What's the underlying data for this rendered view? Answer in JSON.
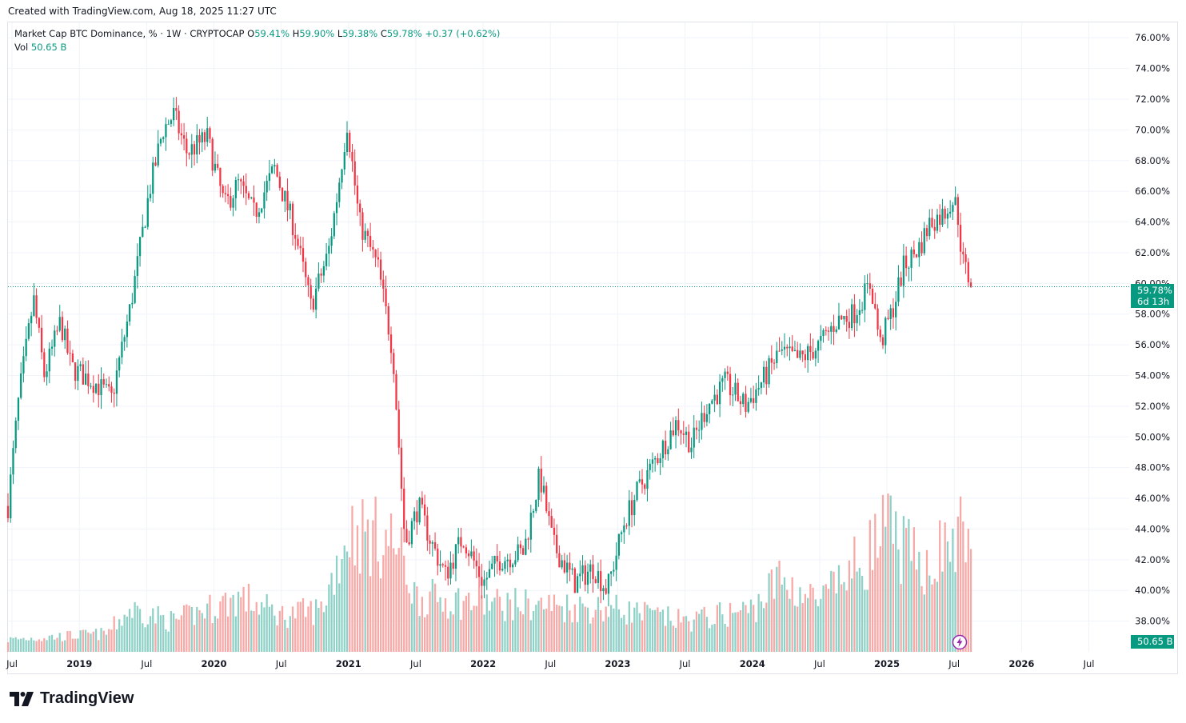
{
  "caption": "Created with TradingView.com, Aug 18, 2025 11:27 UTC",
  "legend": {
    "title": "Market Cap BTC Dominance, % · 1W · CRYPTOCAP",
    "o_key": "O",
    "o_val": "59.41%",
    "h_key": "H",
    "h_val": "59.90%",
    "l_key": "L",
    "l_val": "59.38%",
    "c_key": "C",
    "c_val": "59.78%",
    "change": "+0.37 (+0.62%)",
    "vol_key": "Vol",
    "vol_val": "50.65 B"
  },
  "price_label": {
    "value": "59.78%",
    "countdown": "6d 13h"
  },
  "vol_label": "50.65 B",
  "brand": "TradingView",
  "colors": {
    "up": "#089981",
    "down": "#f23645",
    "up_vol": "#8ed1c7",
    "down_vol": "#f7a9a7",
    "grid": "#f0f3fa"
  },
  "chart_data": {
    "type": "candlestick",
    "title": "Market Cap BTC Dominance, % · 1W · CRYPTOCAP",
    "y_unit": "%",
    "ylim": [
      36.0,
      77.0
    ],
    "y_ticks": [
      38,
      40,
      42,
      44,
      46,
      48,
      50,
      52,
      54,
      56,
      58,
      60,
      62,
      64,
      66,
      68,
      70,
      72,
      74,
      76
    ],
    "y_tick_labels": [
      "38.00%",
      "40.00%",
      "42.00%",
      "44.00%",
      "46.00%",
      "48.00%",
      "50.00%",
      "52.00%",
      "54.00%",
      "56.00%",
      "58.00%",
      "60.00%",
      "62.00%",
      "64.00%",
      "66.00%",
      "68.00%",
      "70.00%",
      "72.00%",
      "74.00%",
      "76.00%"
    ],
    "x_ticks": [
      "Jul",
      "2019",
      "Jul",
      "2020",
      "Jul",
      "2021",
      "Jul",
      "2022",
      "Jul",
      "2023",
      "Jul",
      "2024",
      "Jul",
      "2025",
      "Jul",
      "2026",
      "Jul"
    ],
    "x_tick_dates": [
      2018.5,
      2019.0,
      2019.5,
      2020.0,
      2020.5,
      2021.0,
      2021.5,
      2022.0,
      2022.5,
      2023.0,
      2023.5,
      2024.0,
      2024.5,
      2025.0,
      2025.5,
      2026.0,
      2026.5
    ],
    "x_range": [
      2018.47,
      2026.8
    ],
    "last_price": 59.78,
    "anchors": [
      {
        "t": 2018.47,
        "v": 45.5
      },
      {
        "t": 2018.55,
        "v": 52.5
      },
      {
        "t": 2018.66,
        "v": 59.0
      },
      {
        "t": 2018.74,
        "v": 54.0
      },
      {
        "t": 2018.86,
        "v": 57.5
      },
      {
        "t": 2018.94,
        "v": 54.5
      },
      {
        "t": 2019.12,
        "v": 53.5
      },
      {
        "t": 2019.24,
        "v": 52.5
      },
      {
        "t": 2019.38,
        "v": 58.5
      },
      {
        "t": 2019.52,
        "v": 66.0
      },
      {
        "t": 2019.62,
        "v": 70.0
      },
      {
        "t": 2019.7,
        "v": 71.0
      },
      {
        "t": 2019.8,
        "v": 68.5
      },
      {
        "t": 2019.95,
        "v": 69.5
      },
      {
        "t": 2020.08,
        "v": 65.0
      },
      {
        "t": 2020.18,
        "v": 66.5
      },
      {
        "t": 2020.3,
        "v": 64.5
      },
      {
        "t": 2020.45,
        "v": 67.5
      },
      {
        "t": 2020.6,
        "v": 63.5
      },
      {
        "t": 2020.72,
        "v": 58.5
      },
      {
        "t": 2020.85,
        "v": 62.0
      },
      {
        "t": 2020.92,
        "v": 66.0
      },
      {
        "t": 2020.99,
        "v": 70.5
      },
      {
        "t": 2021.08,
        "v": 64.0
      },
      {
        "t": 2021.22,
        "v": 61.0
      },
      {
        "t": 2021.33,
        "v": 55.5
      },
      {
        "t": 2021.42,
        "v": 43.0
      },
      {
        "t": 2021.52,
        "v": 45.5
      },
      {
        "t": 2021.62,
        "v": 43.0
      },
      {
        "t": 2021.72,
        "v": 41.0
      },
      {
        "t": 2021.85,
        "v": 43.5
      },
      {
        "t": 2022.0,
        "v": 40.5
      },
      {
        "t": 2022.12,
        "v": 42.0
      },
      {
        "t": 2022.3,
        "v": 42.5
      },
      {
        "t": 2022.42,
        "v": 47.5
      },
      {
        "t": 2022.52,
        "v": 43.0
      },
      {
        "t": 2022.68,
        "v": 40.5
      },
      {
        "t": 2022.82,
        "v": 41.5
      },
      {
        "t": 2022.92,
        "v": 40.0
      },
      {
        "t": 2023.05,
        "v": 44.5
      },
      {
        "t": 2023.15,
        "v": 46.5
      },
      {
        "t": 2023.28,
        "v": 48.5
      },
      {
        "t": 2023.44,
        "v": 51.0
      },
      {
        "t": 2023.55,
        "v": 49.5
      },
      {
        "t": 2023.66,
        "v": 52.0
      },
      {
        "t": 2023.8,
        "v": 53.5
      },
      {
        "t": 2023.95,
        "v": 52.0
      },
      {
        "t": 2024.1,
        "v": 54.0
      },
      {
        "t": 2024.2,
        "v": 55.5
      },
      {
        "t": 2024.35,
        "v": 55.0
      },
      {
        "t": 2024.5,
        "v": 56.0
      },
      {
        "t": 2024.62,
        "v": 57.5
      },
      {
        "t": 2024.75,
        "v": 58.0
      },
      {
        "t": 2024.88,
        "v": 60.0
      },
      {
        "t": 2024.95,
        "v": 56.0
      },
      {
        "t": 2025.05,
        "v": 58.5
      },
      {
        "t": 2025.12,
        "v": 61.0
      },
      {
        "t": 2025.25,
        "v": 62.5
      },
      {
        "t": 2025.32,
        "v": 64.0
      },
      {
        "t": 2025.42,
        "v": 64.5
      },
      {
        "t": 2025.48,
        "v": 65.5
      },
      {
        "t": 2025.52,
        "v": 65.0
      },
      {
        "t": 2025.56,
        "v": 61.5
      },
      {
        "t": 2025.6,
        "v": 60.5
      },
      {
        "t": 2025.63,
        "v": 59.78
      }
    ],
    "volume_anchors": [
      {
        "t": 2018.47,
        "v": 1.0
      },
      {
        "t": 2019.2,
        "v": 1.5
      },
      {
        "t": 2019.38,
        "v": 3.5
      },
      {
        "t": 2019.7,
        "v": 2.5
      },
      {
        "t": 2020.2,
        "v": 4.5
      },
      {
        "t": 2020.5,
        "v": 3.0
      },
      {
        "t": 2020.8,
        "v": 3.5
      },
      {
        "t": 2021.0,
        "v": 10.0
      },
      {
        "t": 2021.35,
        "v": 9.0
      },
      {
        "t": 2021.5,
        "v": 4.5
      },
      {
        "t": 2022.0,
        "v": 4.0
      },
      {
        "t": 2022.5,
        "v": 3.8
      },
      {
        "t": 2023.0,
        "v": 3.5
      },
      {
        "t": 2023.5,
        "v": 2.5
      },
      {
        "t": 2024.0,
        "v": 3.5
      },
      {
        "t": 2024.2,
        "v": 6.0
      },
      {
        "t": 2024.5,
        "v": 4.0
      },
      {
        "t": 2024.85,
        "v": 8.0
      },
      {
        "t": 2025.0,
        "v": 10.0
      },
      {
        "t": 2025.25,
        "v": 7.0
      },
      {
        "t": 2025.6,
        "v": 10.0
      }
    ]
  }
}
